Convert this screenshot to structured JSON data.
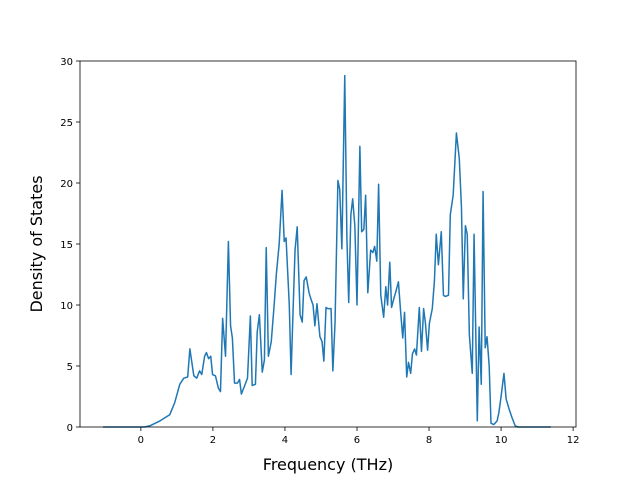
{
  "chart_data": {
    "type": "line",
    "x_label": "Frequency (THz)",
    "y_label": "Density of States",
    "x": [
      -1.05,
      0.1,
      0.25,
      0.53,
      0.8,
      0.94,
      1.08,
      1.19,
      1.3,
      1.36,
      1.47,
      1.55,
      1.63,
      1.69,
      1.77,
      1.82,
      1.88,
      1.94,
      1.99,
      2.07,
      2.15,
      2.21,
      2.27,
      2.35,
      2.43,
      2.49,
      2.54,
      2.6,
      2.68,
      2.74,
      2.79,
      2.87,
      2.96,
      3.04,
      3.09,
      3.18,
      3.23,
      3.29,
      3.37,
      3.43,
      3.48,
      3.54,
      3.62,
      3.7,
      3.76,
      3.84,
      3.92,
      3.98,
      4.03,
      4.12,
      4.17,
      4.23,
      4.28,
      4.34,
      4.42,
      4.48,
      4.53,
      4.59,
      4.67,
      4.72,
      4.78,
      4.83,
      4.89,
      4.97,
      5.03,
      5.08,
      5.14,
      5.19,
      5.28,
      5.33,
      5.39,
      5.47,
      5.52,
      5.58,
      5.66,
      5.72,
      5.77,
      5.83,
      5.88,
      5.94,
      6.0,
      6.08,
      6.13,
      6.19,
      6.24,
      6.3,
      6.38,
      6.44,
      6.49,
      6.55,
      6.6,
      6.66,
      6.74,
      6.8,
      6.85,
      6.91,
      6.96,
      7.02,
      7.07,
      7.15,
      7.21,
      7.27,
      7.32,
      7.38,
      7.43,
      7.49,
      7.54,
      7.6,
      7.65,
      7.73,
      7.79,
      7.85,
      7.9,
      7.96,
      8.01,
      8.09,
      8.15,
      8.2,
      8.26,
      8.34,
      8.4,
      8.45,
      8.54,
      8.59,
      8.67,
      8.76,
      8.84,
      8.9,
      8.95,
      9.01,
      9.06,
      9.12,
      9.2,
      9.25,
      9.34,
      9.39,
      9.45,
      9.5,
      9.56,
      9.61,
      9.67,
      9.72,
      9.8,
      9.89,
      9.94,
      10.0,
      10.08,
      10.14,
      10.22,
      10.3,
      10.39,
      10.47,
      11.38
    ],
    "values": [
      0,
      0,
      0.1,
      0.5,
      1,
      2,
      3.5,
      4,
      4.1,
      6.4,
      4.2,
      4,
      4.6,
      4.3,
      5.8,
      6.1,
      5.6,
      5.8,
      4.3,
      4.2,
      3.2,
      2.9,
      8.9,
      5.8,
      15.2,
      8.3,
      7.3,
      3.6,
      3.6,
      3.9,
      2.7,
      3.3,
      4,
      9.1,
      3.4,
      3.5,
      7.8,
      9.2,
      4.5,
      5.5,
      14.7,
      5.8,
      7,
      10,
      12.5,
      15,
      19.4,
      15.2,
      15.5,
      10,
      4.3,
      10,
      14.5,
      16.4,
      9.2,
      8.6,
      12,
      12.3,
      11,
      10.5,
      10,
      8.3,
      10.1,
      7.4,
      7,
      5.4,
      9.8,
      9.7,
      9.7,
      4.6,
      8.5,
      20.2,
      19.5,
      14.6,
      28.8,
      15.5,
      10.2,
      17.4,
      18.7,
      16.5,
      10,
      23,
      16,
      16.2,
      19,
      11,
      14.5,
      14.3,
      14.8,
      13.6,
      19.9,
      10.8,
      9,
      11.5,
      10,
      13.5,
      9.8,
      10.5,
      11,
      11.9,
      9.5,
      7.3,
      9.4,
      4.1,
      5.3,
      4.4,
      6,
      6.4,
      5.9,
      9.8,
      6.2,
      9.7,
      8.5,
      6.3,
      8.5,
      9.7,
      12,
      15.8,
      13.3,
      16,
      10.8,
      10.7,
      10.8,
      17.4,
      19,
      24.1,
      22,
      18,
      10.5,
      16.5,
      15.8,
      7.5,
      4.4,
      15.8,
      0.5,
      8.2,
      3.5,
      19.3,
      6.5,
      7.4,
      5,
      0.3,
      0.2,
      0.5,
      1.2,
      2.5,
      4.4,
      2.3,
      1.5,
      0.8,
      0.1,
      0,
      0
    ],
    "color": "#1f77b4",
    "xlim": [
      -1.69,
      12.08
    ],
    "ylim": [
      0,
      30
    ],
    "xticks": [
      0,
      2,
      4,
      6,
      8,
      10,
      12
    ],
    "yticks": [
      0,
      5,
      10,
      15,
      20,
      25,
      30
    ],
    "grid": false
  }
}
